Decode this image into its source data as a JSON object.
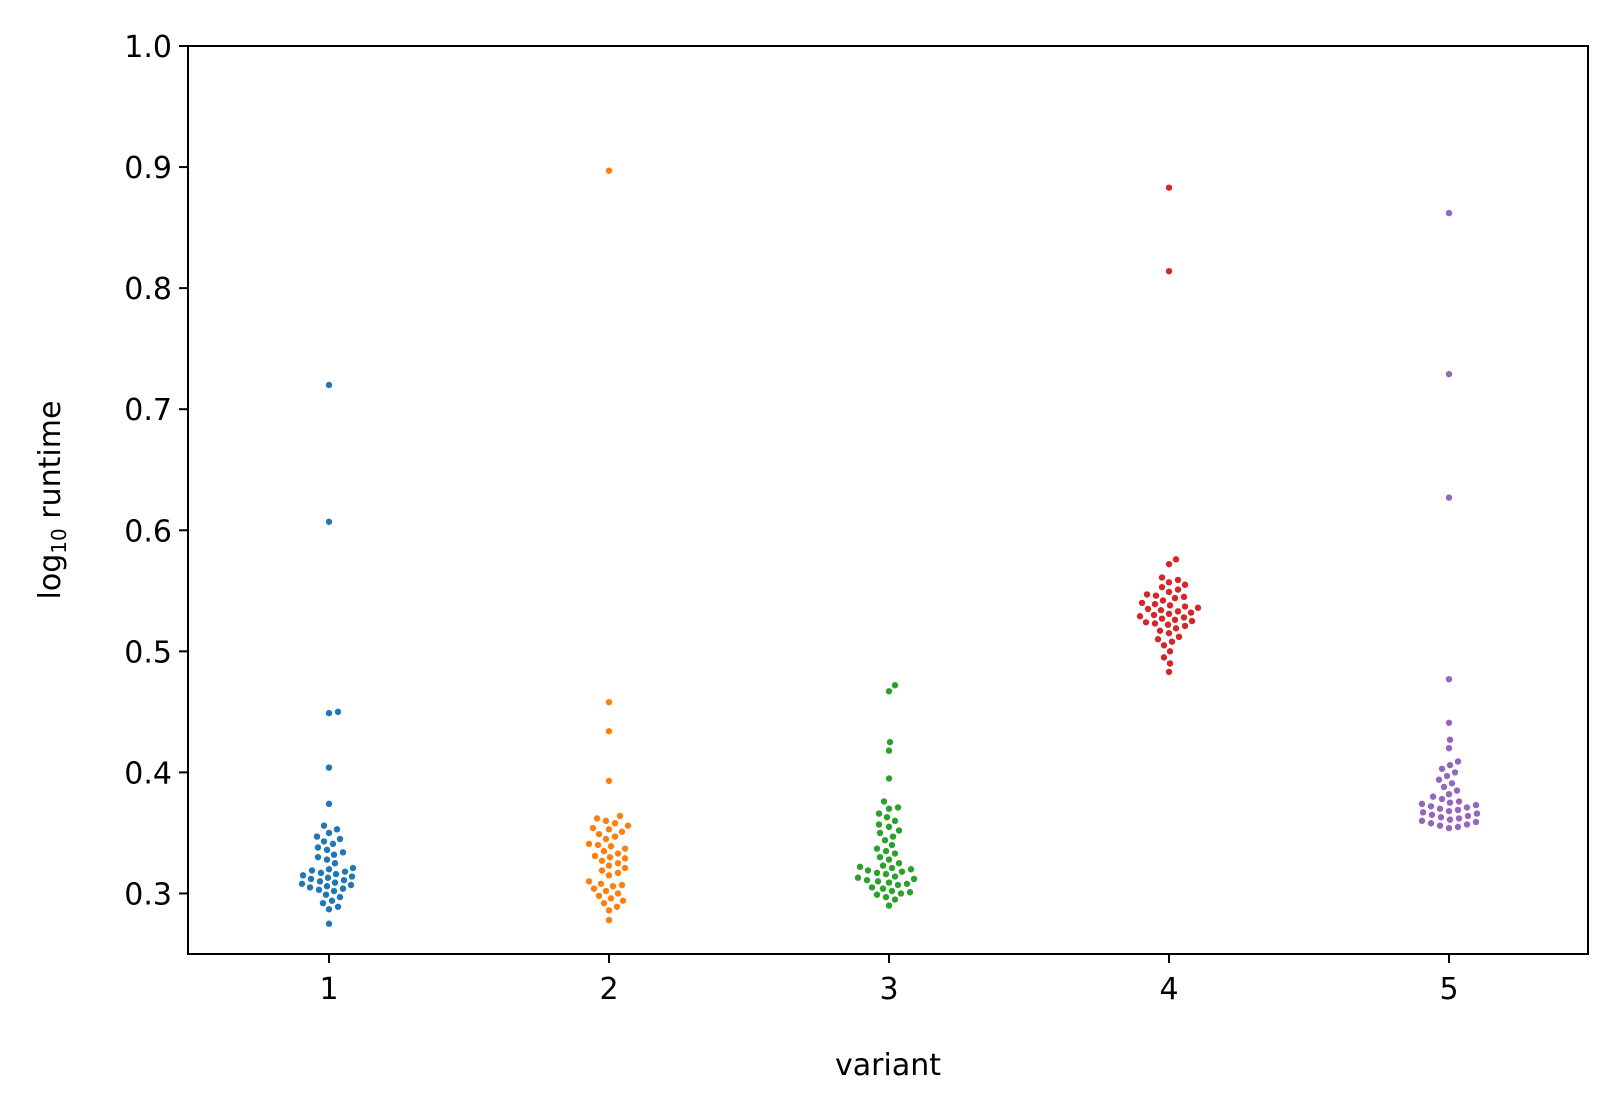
{
  "chart_data": {
    "type": "scatter",
    "subtype": "swarm",
    "title": "",
    "xlabel": "variant",
    "ylabel": {
      "prefix": "log",
      "subscript": "10",
      "suffix": " runtime"
    },
    "categories": [
      "1",
      "2",
      "3",
      "4",
      "5"
    ],
    "ylim": [
      0.25,
      1.0
    ],
    "yticks": [
      "0.3",
      "0.4",
      "0.5",
      "0.6",
      "0.7",
      "0.8",
      "0.9",
      "1.0"
    ],
    "grid": false,
    "legend": "none",
    "series": [
      {
        "category": "1",
        "color": "#1f77b4",
        "values": [
          0.275,
          0.287,
          0.289,
          0.292,
          0.294,
          0.297,
          0.299,
          0.302,
          0.303,
          0.304,
          0.305,
          0.306,
          0.307,
          0.308,
          0.309,
          0.31,
          0.311,
          0.312,
          0.313,
          0.314,
          0.315,
          0.316,
          0.317,
          0.318,
          0.319,
          0.32,
          0.321,
          0.325,
          0.328,
          0.33,
          0.332,
          0.334,
          0.336,
          0.338,
          0.341,
          0.343,
          0.345,
          0.347,
          0.35,
          0.353,
          0.356,
          0.374,
          0.404,
          0.449,
          0.45,
          0.607,
          0.72
        ]
      },
      {
        "category": "2",
        "color": "#ff7f0e",
        "values": [
          0.278,
          0.286,
          0.289,
          0.292,
          0.294,
          0.296,
          0.298,
          0.3,
          0.302,
          0.304,
          0.306,
          0.307,
          0.308,
          0.31,
          0.315,
          0.317,
          0.319,
          0.321,
          0.323,
          0.325,
          0.327,
          0.329,
          0.33,
          0.331,
          0.333,
          0.335,
          0.337,
          0.339,
          0.34,
          0.341,
          0.345,
          0.347,
          0.349,
          0.351,
          0.353,
          0.354,
          0.356,
          0.358,
          0.36,
          0.362,
          0.364,
          0.393,
          0.434,
          0.458,
          0.897
        ]
      },
      {
        "category": "3",
        "color": "#2ca02c",
        "values": [
          0.29,
          0.295,
          0.297,
          0.299,
          0.3,
          0.301,
          0.302,
          0.304,
          0.305,
          0.307,
          0.308,
          0.309,
          0.31,
          0.311,
          0.312,
          0.313,
          0.314,
          0.316,
          0.317,
          0.318,
          0.319,
          0.32,
          0.321,
          0.322,
          0.323,
          0.325,
          0.328,
          0.33,
          0.333,
          0.335,
          0.337,
          0.34,
          0.344,
          0.347,
          0.35,
          0.352,
          0.355,
          0.357,
          0.36,
          0.363,
          0.366,
          0.37,
          0.371,
          0.376,
          0.395,
          0.418,
          0.425,
          0.467,
          0.472
        ]
      },
      {
        "category": "4",
        "color": "#d62728",
        "values": [
          0.483,
          0.49,
          0.495,
          0.5,
          0.505,
          0.508,
          0.51,
          0.512,
          0.515,
          0.517,
          0.519,
          0.521,
          0.522,
          0.523,
          0.524,
          0.525,
          0.526,
          0.527,
          0.528,
          0.529,
          0.53,
          0.531,
          0.532,
          0.533,
          0.534,
          0.535,
          0.536,
          0.537,
          0.538,
          0.539,
          0.54,
          0.542,
          0.544,
          0.545,
          0.546,
          0.547,
          0.549,
          0.551,
          0.553,
          0.555,
          0.557,
          0.559,
          0.561,
          0.572,
          0.576,
          0.814,
          0.883
        ]
      },
      {
        "category": "5",
        "color": "#9467bd",
        "values": [
          0.354,
          0.355,
          0.356,
          0.357,
          0.358,
          0.359,
          0.36,
          0.361,
          0.362,
          0.363,
          0.364,
          0.365,
          0.366,
          0.367,
          0.368,
          0.369,
          0.37,
          0.371,
          0.372,
          0.373,
          0.374,
          0.375,
          0.376,
          0.378,
          0.38,
          0.382,
          0.385,
          0.388,
          0.391,
          0.394,
          0.397,
          0.4,
          0.403,
          0.406,
          0.409,
          0.42,
          0.427,
          0.441,
          0.477,
          0.627,
          0.729,
          0.862
        ]
      }
    ]
  }
}
